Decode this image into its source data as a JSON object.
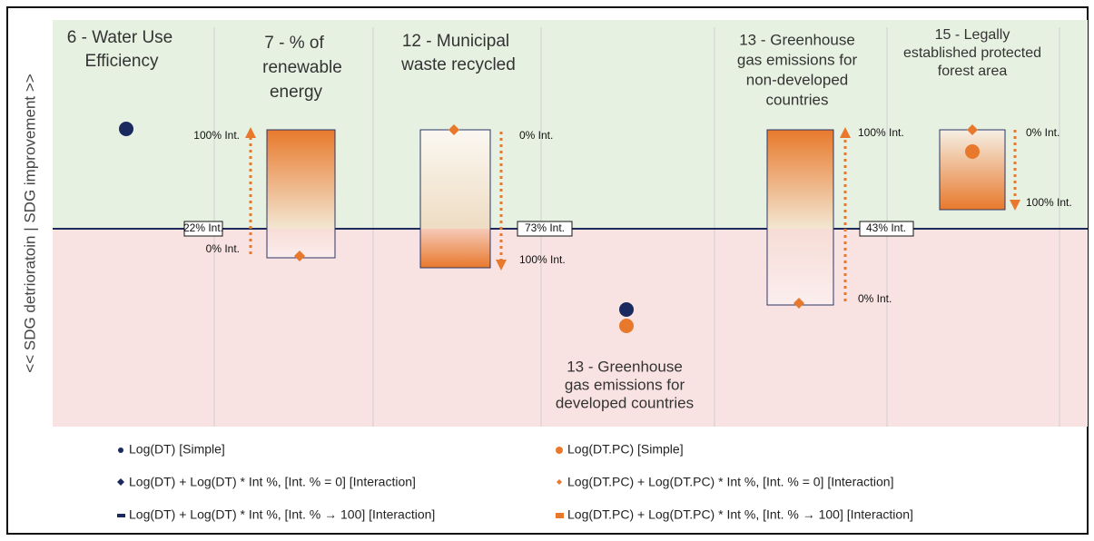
{
  "y_axis_label": "<< SDG detrioratoin | SDG improvement >>",
  "panels": [
    {
      "title_lines": [
        "6 - Water Use",
        "Efficiency"
      ]
    },
    {
      "title_lines": [
        "7 - % of",
        "renewable",
        "energy"
      ],
      "labels": [
        "100% Int.",
        "22% Int.",
        "0% Int."
      ]
    },
    {
      "title_lines": [
        "12 - Municipal",
        "waste recycled"
      ],
      "labels": [
        "0% Int.",
        "73% Int.",
        "100% Int."
      ]
    },
    {
      "title_lines": [
        "13 - Greenhouse",
        "gas emissions for",
        "developed countries"
      ]
    },
    {
      "title_lines": [
        "13 - Greenhouse",
        "gas emissions for",
        "non-developed",
        "countries"
      ],
      "labels": [
        "100% Int.",
        "43% Int.",
        "0% Int."
      ]
    },
    {
      "title_lines": [
        "15 - Legally",
        "established protected",
        "forest area"
      ],
      "labels": [
        "0% Int.",
        "100% Int."
      ]
    }
  ],
  "legend": [
    "Log(DT) [Simple]",
    "Log(DT.PC) [Simple]",
    "Log(DT) + Log(DT) * Int %, [Int. % = 0] [Interaction]",
    "Log(DT.PC) + Log(DT.PC) * Int %, [Int. % = 0] [Interaction]",
    "Log(DT) + Log(DT) * Int %, [Int. % → 100] [Interaction]",
    "Log(DT.PC) + Log(DT.PC) * Int %, [Int. % → 100] [Interaction]"
  ]
}
